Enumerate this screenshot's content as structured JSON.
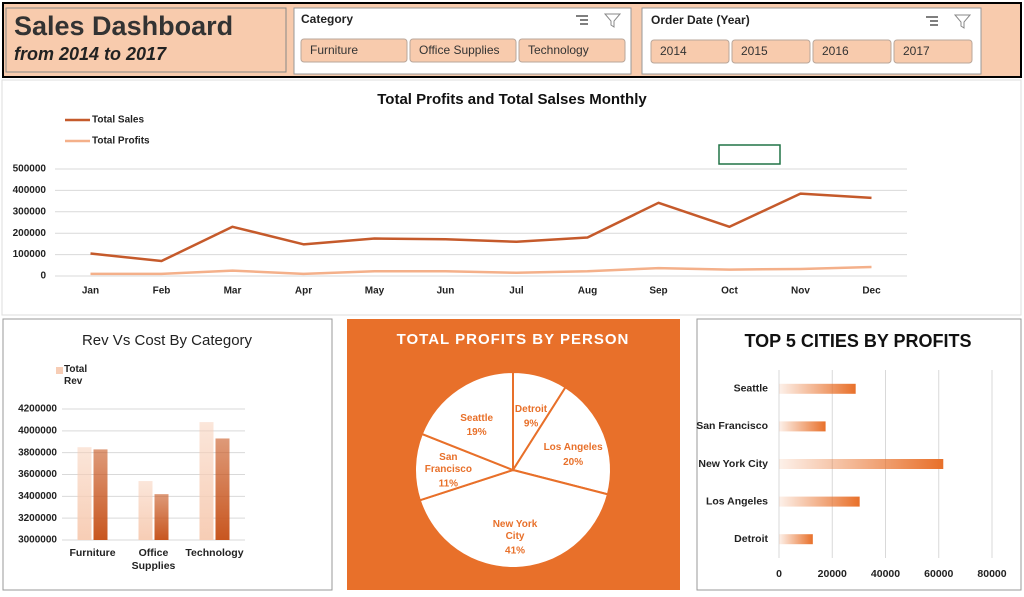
{
  "header": {
    "title": "Sales Dashboard",
    "subtitle": "from 2014 to 2017"
  },
  "slicers": [
    {
      "title": "Category",
      "items": [
        "Furniture",
        "Office Supplies",
        "Technology"
      ]
    },
    {
      "title": "Order Date (Year)",
      "items": [
        "2014",
        "2015",
        "2016",
        "2017"
      ]
    }
  ],
  "chart_data": [
    {
      "type": "line",
      "title": "Total Profits and Total Salses Monthly",
      "categories": [
        "Jan",
        "Feb",
        "Mar",
        "Apr",
        "May",
        "Jun",
        "Jul",
        "Aug",
        "Sep",
        "Oct",
        "Nov",
        "Dec"
      ],
      "series": [
        {
          "name": "Total Sales",
          "color": "#c55a2b",
          "values": [
            105000,
            70000,
            230000,
            148000,
            175000,
            172000,
            160000,
            180000,
            342000,
            230000,
            385000,
            365000
          ]
        },
        {
          "name": "Total Profits",
          "color": "#f4b08a",
          "values": [
            10000,
            10000,
            25000,
            10000,
            22000,
            22000,
            15000,
            22000,
            37000,
            30000,
            33000,
            42000
          ]
        }
      ],
      "ylim": [
        0,
        500000
      ],
      "yticks": [
        0,
        100000,
        200000,
        300000,
        400000,
        500000
      ],
      "grid": true,
      "legend": "top-left"
    },
    {
      "type": "bar",
      "title": "Rev Vs Cost By Category",
      "categories": [
        "Furniture",
        "Office Supplies",
        "Technology"
      ],
      "series": [
        {
          "name": "Total Rev",
          "color": "#f7cdb5",
          "values": [
            3850000,
            3540000,
            4080000
          ]
        },
        {
          "color": "#c8561f",
          "values": [
            3830000,
            3420000,
            3930000
          ]
        }
      ],
      "ylim": [
        3000000,
        4200000
      ],
      "yticks": [
        3000000,
        3200000,
        3400000,
        3600000,
        3800000,
        4000000,
        4200000
      ],
      "grid": true,
      "legend": "top-left"
    },
    {
      "type": "pie",
      "title": "TOTAL PROFITS BY PERSON",
      "categories": [
        "Detroit",
        "Los Angeles",
        "New York City",
        "San Francisco",
        "Seattle"
      ],
      "values": [
        9,
        20,
        41,
        11,
        19
      ],
      "value_labels": [
        "9%",
        "20%",
        "41%",
        "11%",
        "19%"
      ],
      "color": "#ffffff",
      "background": "#e8702a"
    },
    {
      "type": "hbar",
      "title": "TOP 5 CITIES BY PROFITS",
      "categories": [
        "Seattle",
        "San Francisco",
        "New York City",
        "Los Angeles",
        "Detroit"
      ],
      "values": [
        28800,
        17500,
        61700,
        30300,
        12700
      ],
      "color": "#e8702a",
      "xlim": [
        0,
        80000
      ],
      "xticks": [
        0,
        20000,
        40000,
        60000,
        80000
      ],
      "grid": true
    }
  ]
}
